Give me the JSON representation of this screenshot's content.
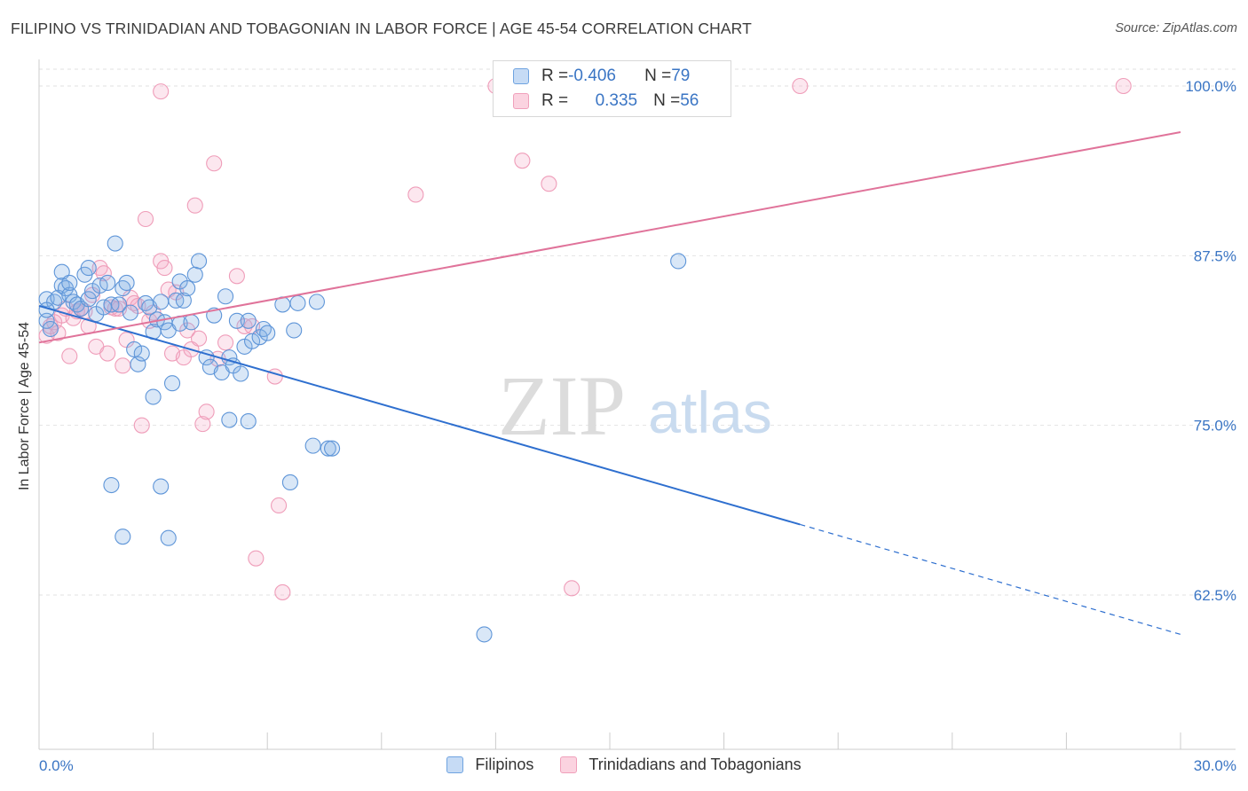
{
  "title": "FILIPINO VS TRINIDADIAN AND TOBAGONIAN IN LABOR FORCE | AGE 45-54 CORRELATION CHART",
  "source": "Source: ZipAtlas.com",
  "watermark": {
    "zip": "ZIP",
    "atlas": "atlas"
  },
  "colors": {
    "blue": "#6fa3e0",
    "blue_line": "#2e6fcf",
    "pink": "#f0a0bb",
    "pink_line": "#e0739a",
    "axis_text": "#3a75c4"
  },
  "legend": {
    "rows": [
      {
        "r_label": "R = ",
        "r_value": "-0.406",
        "n_label": "N = ",
        "n_value": "79"
      },
      {
        "r_label": "R = ",
        "r_value": "0.335",
        "n_label": "N = ",
        "n_value": "56"
      }
    ]
  },
  "bottom_legend": {
    "items": [
      "Filipinos",
      "Trinidadians and Tobagonians"
    ]
  },
  "chart_data": {
    "type": "scatter",
    "title": "FILIPINO VS TRINIDADIAN AND TOBAGONIAN IN LABOR FORCE | AGE 45-54 CORRELATION CHART",
    "xlabel": "",
    "ylabel": "In Labor Force | Age 45-54",
    "xlim": [
      0,
      30
    ],
    "ylim": [
      50,
      102.5
    ],
    "x_tick_labels": [
      "0.0%",
      "30.0%"
    ],
    "y_ticks": [
      62.5,
      75.0,
      87.5,
      100.0
    ],
    "y_tick_labels": [
      "62.5%",
      "75.0%",
      "87.5%",
      "100.0%"
    ],
    "grid": true,
    "series": [
      {
        "name": "Filipinos",
        "r": -0.406,
        "n": 79,
        "trend": {
          "x_solid": [
            0,
            20
          ],
          "y_solid": [
            83.8,
            67.7
          ],
          "x_dash": [
            20,
            30
          ],
          "y_dash": [
            67.7,
            59.6
          ]
        },
        "points": [
          [
            0.2,
            84.3
          ],
          [
            0.2,
            82.7
          ],
          [
            0.3,
            82.1
          ],
          [
            0.4,
            84.1
          ],
          [
            0.5,
            84.4
          ],
          [
            0.6,
            85.3
          ],
          [
            0.6,
            86.3
          ],
          [
            0.7,
            85.1
          ],
          [
            0.8,
            84.6
          ],
          [
            0.8,
            85.5
          ],
          [
            0.9,
            84.1
          ],
          [
            1.0,
            83.9
          ],
          [
            1.1,
            83.6
          ],
          [
            1.2,
            86.1
          ],
          [
            1.3,
            86.6
          ],
          [
            1.3,
            84.3
          ],
          [
            1.4,
            84.9
          ],
          [
            1.5,
            83.2
          ],
          [
            1.6,
            85.3
          ],
          [
            1.7,
            83.7
          ],
          [
            1.8,
            85.5
          ],
          [
            1.9,
            83.9
          ],
          [
            2.0,
            88.4
          ],
          [
            2.1,
            83.9
          ],
          [
            2.2,
            85.1
          ],
          [
            2.3,
            85.5
          ],
          [
            2.4,
            83.3
          ],
          [
            2.5,
            80.6
          ],
          [
            2.6,
            79.5
          ],
          [
            2.7,
            80.3
          ],
          [
            2.8,
            84.0
          ],
          [
            2.9,
            83.7
          ],
          [
            3.0,
            81.9
          ],
          [
            3.1,
            82.8
          ],
          [
            3.2,
            84.1
          ],
          [
            3.3,
            82.6
          ],
          [
            3.4,
            82.0
          ],
          [
            3.5,
            78.1
          ],
          [
            3.7,
            82.5
          ],
          [
            3.6,
            84.2
          ],
          [
            3.7,
            85.6
          ],
          [
            3.8,
            84.2
          ],
          [
            3.9,
            85.1
          ],
          [
            4.0,
            82.6
          ],
          [
            4.1,
            86.1
          ],
          [
            4.2,
            87.1
          ],
          [
            4.4,
            80.0
          ],
          [
            4.5,
            79.3
          ],
          [
            4.6,
            83.1
          ],
          [
            4.8,
            78.9
          ],
          [
            4.9,
            84.5
          ],
          [
            5.0,
            80.0
          ],
          [
            5.1,
            79.4
          ],
          [
            5.2,
            82.7
          ],
          [
            5.3,
            78.8
          ],
          [
            5.4,
            80.8
          ],
          [
            5.5,
            82.7
          ],
          [
            5.6,
            81.2
          ],
          [
            5.8,
            81.5
          ],
          [
            5.9,
            82.1
          ],
          [
            6.0,
            81.8
          ],
          [
            6.4,
            83.9
          ],
          [
            6.6,
            70.8
          ],
          [
            6.7,
            82.0
          ],
          [
            6.8,
            84.0
          ],
          [
            7.2,
            73.5
          ],
          [
            7.3,
            84.1
          ],
          [
            7.6,
            73.3
          ],
          [
            7.7,
            73.3
          ],
          [
            5.0,
            75.4
          ],
          [
            5.5,
            75.3
          ],
          [
            3.0,
            77.1
          ],
          [
            1.9,
            70.6
          ],
          [
            2.2,
            66.8
          ],
          [
            3.2,
            70.5
          ],
          [
            3.4,
            66.7
          ],
          [
            11.7,
            59.6
          ],
          [
            16.8,
            87.1
          ],
          [
            0.2,
            83.5
          ]
        ]
      },
      {
        "name": "Trinidadians and Tobagonians",
        "r": 0.335,
        "n": 56,
        "trend": {
          "x": [
            0,
            30
          ],
          "y": [
            81.1,
            96.6
          ]
        },
        "points": [
          [
            0.2,
            81.6
          ],
          [
            0.3,
            82.3
          ],
          [
            0.4,
            82.6
          ],
          [
            0.5,
            81.8
          ],
          [
            0.6,
            83.1
          ],
          [
            0.7,
            83.6
          ],
          [
            0.8,
            80.1
          ],
          [
            0.9,
            82.9
          ],
          [
            1.0,
            83.4
          ],
          [
            1.1,
            83.6
          ],
          [
            1.2,
            83.4
          ],
          [
            1.3,
            82.3
          ],
          [
            1.4,
            84.6
          ],
          [
            1.5,
            80.8
          ],
          [
            1.6,
            86.6
          ],
          [
            1.7,
            86.2
          ],
          [
            1.8,
            80.3
          ],
          [
            1.9,
            83.7
          ],
          [
            2.0,
            83.6
          ],
          [
            2.1,
            83.6
          ],
          [
            2.2,
            79.4
          ],
          [
            2.3,
            81.3
          ],
          [
            2.4,
            84.4
          ],
          [
            2.5,
            84.0
          ],
          [
            2.6,
            83.8
          ],
          [
            2.7,
            75.0
          ],
          [
            2.8,
            90.2
          ],
          [
            2.9,
            82.7
          ],
          [
            3.0,
            83.3
          ],
          [
            3.2,
            87.1
          ],
          [
            3.3,
            86.6
          ],
          [
            3.4,
            85.0
          ],
          [
            3.5,
            80.3
          ],
          [
            3.6,
            84.8
          ],
          [
            3.8,
            80.0
          ],
          [
            3.9,
            82.0
          ],
          [
            4.0,
            80.6
          ],
          [
            4.1,
            91.2
          ],
          [
            4.2,
            81.4
          ],
          [
            4.3,
            75.1
          ],
          [
            4.4,
            76.0
          ],
          [
            4.6,
            94.3
          ],
          [
            4.7,
            79.9
          ],
          [
            4.9,
            81.1
          ],
          [
            5.2,
            86.0
          ],
          [
            5.4,
            82.3
          ],
          [
            5.6,
            82.3
          ],
          [
            5.7,
            65.2
          ],
          [
            6.2,
            78.6
          ],
          [
            6.3,
            69.1
          ],
          [
            6.4,
            62.7
          ],
          [
            9.9,
            92.0
          ],
          [
            12.0,
            100.0
          ],
          [
            12.7,
            94.5
          ],
          [
            13.4,
            92.8
          ],
          [
            14.0,
            63.0
          ]
        ],
        "extra_points": [
          [
            3.2,
            99.6
          ],
          [
            20.0,
            100.0
          ],
          [
            28.5,
            100.0
          ]
        ]
      }
    ]
  }
}
